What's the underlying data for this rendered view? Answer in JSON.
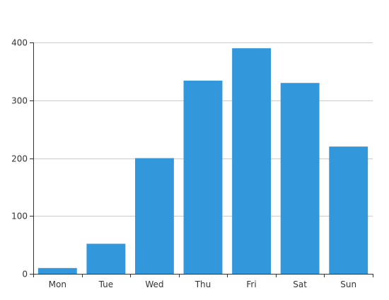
{
  "chart_data": {
    "type": "bar",
    "categories": [
      "Mon",
      "Tue",
      "Wed",
      "Thu",
      "Fri",
      "Sat",
      "Sun"
    ],
    "values": [
      10,
      52,
      200,
      334,
      390,
      330,
      220
    ],
    "title": "",
    "xlabel": "",
    "ylabel": "",
    "ylim": [
      0,
      400
    ],
    "yticks": [
      0,
      100,
      200,
      300,
      400
    ],
    "grid": true,
    "legend": "none",
    "bar_color": "#3398DB",
    "grid_color": "#cccccc",
    "axis_color": "#333333",
    "text_color": "#333333"
  }
}
